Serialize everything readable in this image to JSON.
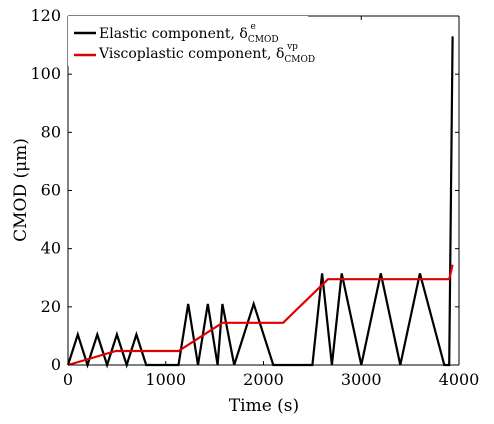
{
  "chart_data": {
    "type": "line",
    "xlabel": "Time (s)",
    "ylabel": "CMOD (μm)",
    "xlim": [
      0,
      4000
    ],
    "ylim": [
      0,
      120
    ],
    "xticks": [
      "0",
      "1000",
      "2000",
      "3000",
      "4000"
    ],
    "yticks": [
      "0",
      "20",
      "40",
      "60",
      "80",
      "100",
      "120"
    ],
    "grid": false,
    "legend_position": "top-left",
    "series": [
      {
        "name": "Elastic component, δ_CMOD^e",
        "legend": {
          "main": "Elastic component, δ",
          "sub": "CMOD",
          "sup": "e"
        },
        "color": "#000000",
        "x": [
          0,
          100,
          200,
          300,
          400,
          500,
          600,
          700,
          800,
          900,
          1000,
          1130,
          1230,
          1330,
          1430,
          1530,
          1580,
          1700,
          1900,
          2100,
          2200,
          2300,
          2400,
          2500,
          2600,
          2700,
          2800,
          3000,
          3200,
          3400,
          3600,
          3850,
          3870,
          3900,
          3935
        ],
        "y": [
          0,
          10.5,
          0,
          10.5,
          0,
          10.5,
          0,
          10.5,
          0,
          0,
          0,
          0,
          21,
          0,
          21,
          0,
          21,
          0,
          21,
          0,
          0,
          0,
          0,
          0,
          31.5,
          0,
          31.5,
          0,
          31.5,
          0,
          31.5,
          0,
          0,
          0,
          113
        ]
      },
      {
        "name": "Viscoplastic component, δ_CMOD^vp",
        "legend": {
          "main": "Viscoplastic component, δ",
          "sub": "CMOD",
          "sup": "vp"
        },
        "color": "#e00000",
        "x": [
          0,
          490,
          1130,
          1580,
          2200,
          2660,
          3900,
          3935
        ],
        "y": [
          0,
          4.8,
          4.8,
          14.5,
          14.5,
          29.5,
          29.5,
          34.5
        ]
      }
    ]
  }
}
